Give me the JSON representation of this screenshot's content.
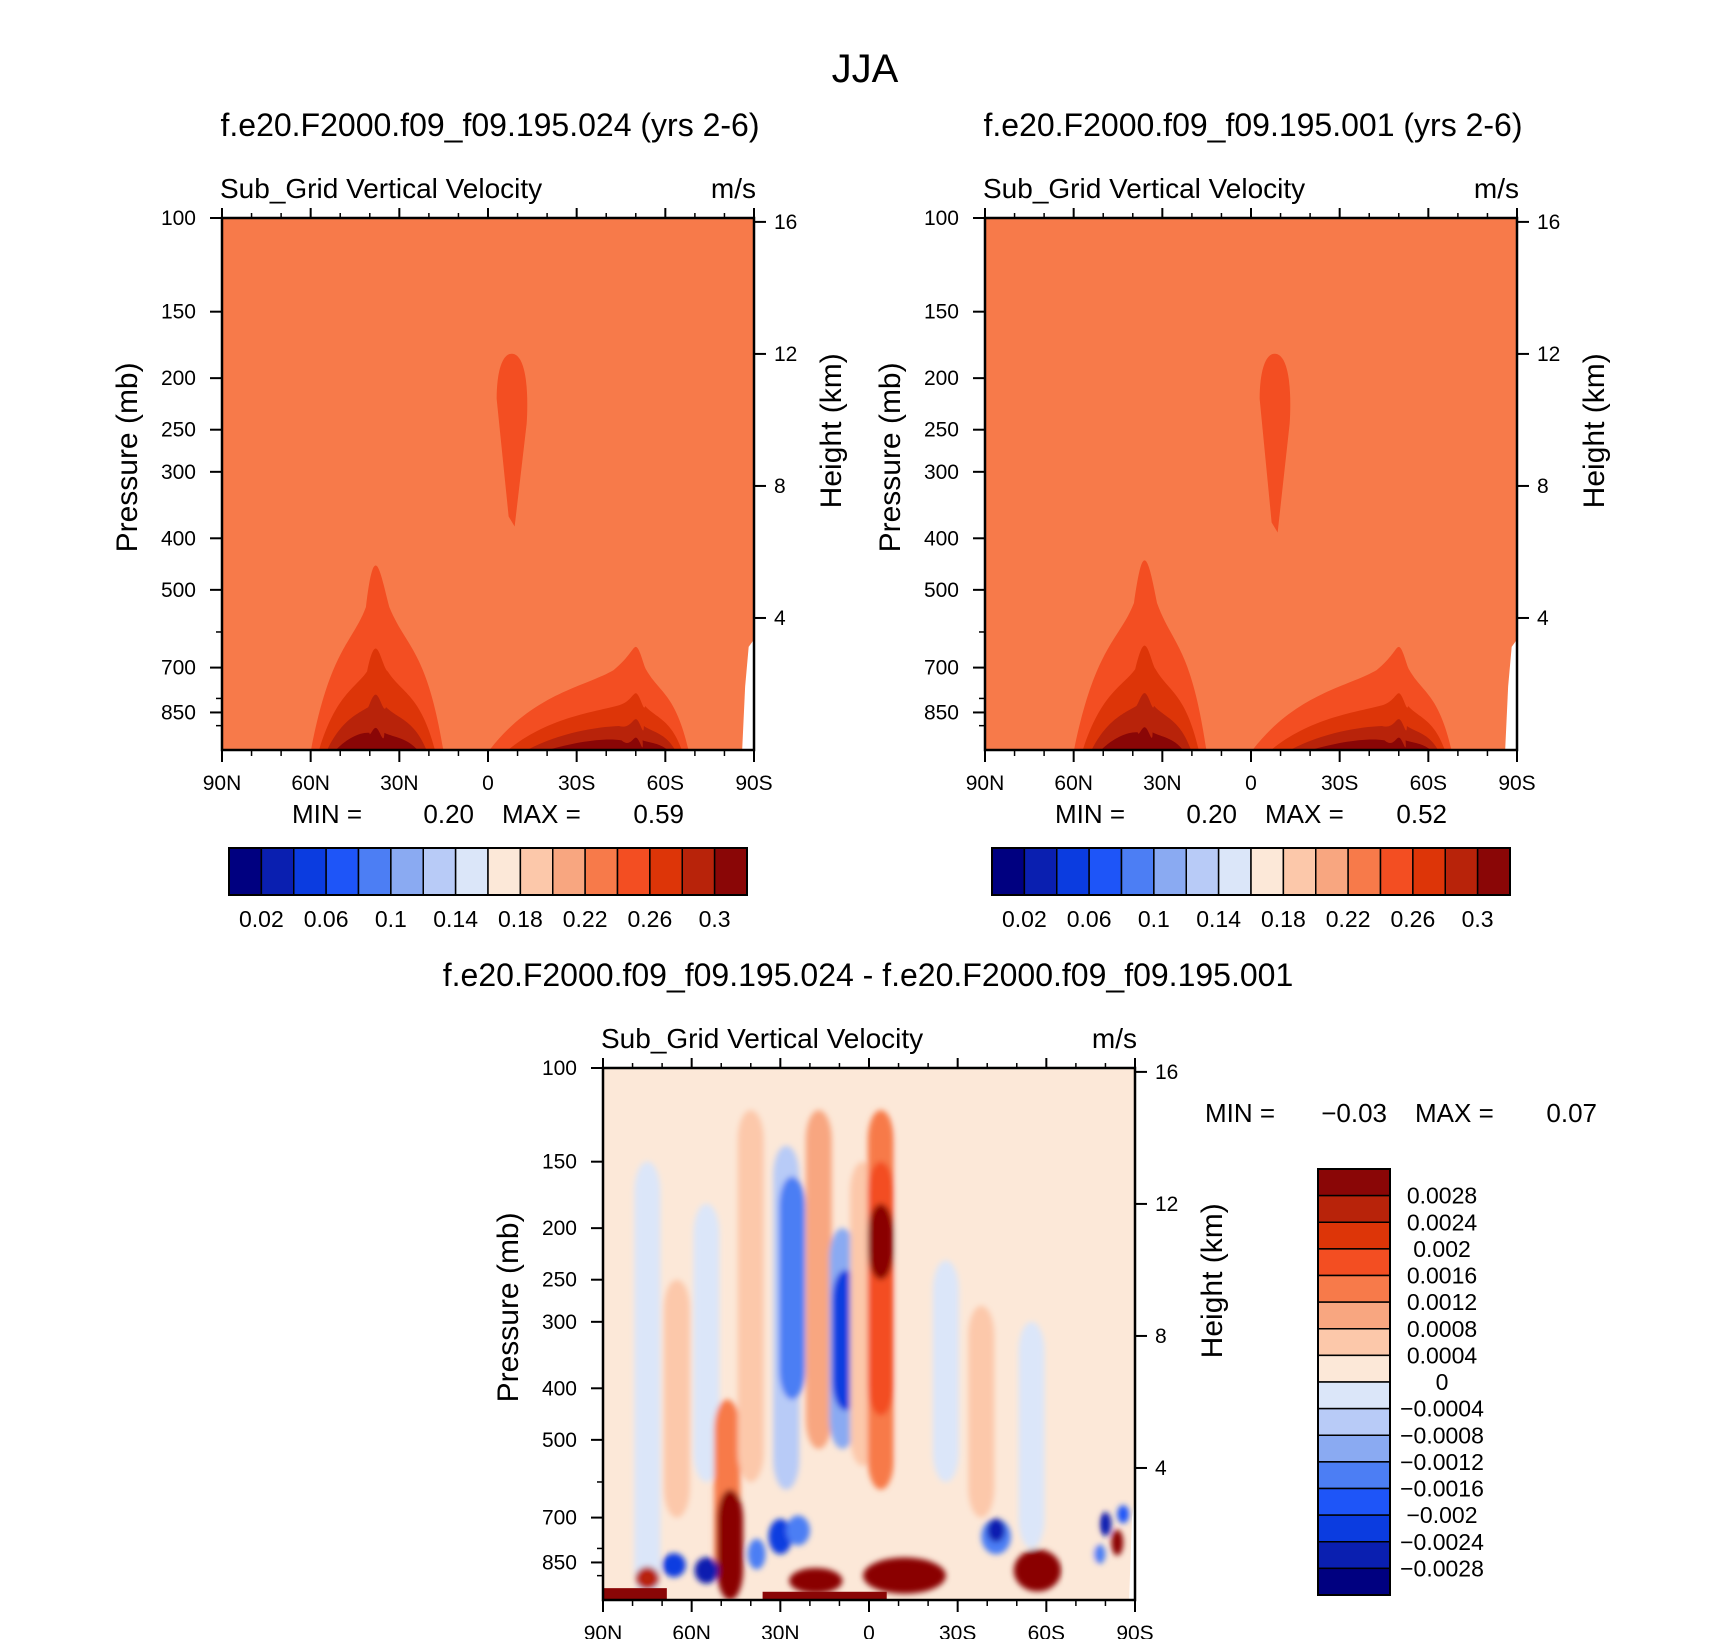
{
  "figure": {
    "title": "JJA"
  },
  "chart_data": [
    {
      "id": "panel1",
      "type": "heatmap",
      "title": "f.e20.F2000.f09_f09.195.024 (yrs 2-6)",
      "variable": "Sub_Grid Vertical Velocity",
      "units": "m/s",
      "ylabel": "Pressure (mb)",
      "ylabel_right": "Height (km)",
      "x_ticks": [
        "90N",
        "60N",
        "30N",
        "0",
        "30S",
        "60S",
        "90S"
      ],
      "y_ticks": [
        "100",
        "150",
        "200",
        "250",
        "300",
        "400",
        "500",
        "700",
        "850"
      ],
      "y_tick_values": [
        100,
        150,
        200,
        250,
        300,
        400,
        500,
        700,
        850
      ],
      "right_ticks": [
        "16",
        "12",
        "8",
        "4"
      ],
      "right_tick_values": [
        16,
        12,
        8,
        4
      ],
      "ylim": [
        100,
        1000
      ],
      "min_label": "MIN =",
      "min_value": "0.20",
      "max_label": "MAX =",
      "max_value": "0.59",
      "background_level": 0.22,
      "features": [
        {
          "kind": "upper-plume",
          "center_lat": -8,
          "p_top": 180,
          "p_bottom": 380,
          "level": 0.24
        },
        {
          "kind": "boundary-layer",
          "lat_from": 60,
          "lat_to": 15,
          "peak_lat": 38,
          "top_p": 450,
          "max_level": 0.3
        },
        {
          "kind": "boundary-layer",
          "lat_from": 0,
          "lat_to": -68,
          "peak_lat": -50,
          "top_p": 640,
          "max_level": 0.3
        }
      ]
    },
    {
      "id": "panel2",
      "type": "heatmap",
      "title": "f.e20.F2000.f09_f09.195.001 (yrs 2-6)",
      "variable": "Sub_Grid Vertical Velocity",
      "units": "m/s",
      "ylabel": "Pressure (mb)",
      "ylabel_right": "Height (km)",
      "x_ticks": [
        "90N",
        "60N",
        "30N",
        "0",
        "30S",
        "60S",
        "90S"
      ],
      "y_ticks": [
        "100",
        "150",
        "200",
        "250",
        "300",
        "400",
        "500",
        "700",
        "850"
      ],
      "y_tick_values": [
        100,
        150,
        200,
        250,
        300,
        400,
        500,
        700,
        850
      ],
      "right_ticks": [
        "16",
        "12",
        "8",
        "4"
      ],
      "right_tick_values": [
        16,
        12,
        8,
        4
      ],
      "ylim": [
        100,
        1000
      ],
      "min_label": "MIN =",
      "min_value": "0.20",
      "max_label": "MAX =",
      "max_value": "0.52",
      "background_level": 0.22,
      "features": [
        {
          "kind": "upper-plume",
          "center_lat": -8,
          "p_top": 180,
          "p_bottom": 390,
          "level": 0.24
        },
        {
          "kind": "boundary-layer",
          "lat_from": 60,
          "lat_to": 15,
          "peak_lat": 36,
          "top_p": 440,
          "max_level": 0.3
        },
        {
          "kind": "boundary-layer",
          "lat_from": 0,
          "lat_to": -68,
          "peak_lat": -50,
          "top_p": 640,
          "max_level": 0.3
        }
      ]
    },
    {
      "id": "diff",
      "type": "heatmap",
      "title": "f.e20.F2000.f09_f09.195.024 - f.e20.F2000.f09_f09.195.001",
      "variable": "Sub_Grid Vertical Velocity",
      "units": "m/s",
      "ylabel": "Pressure (mb)",
      "ylabel_right": "Height (km)",
      "x_ticks": [
        "90N",
        "60N",
        "30N",
        "0",
        "30S",
        "60S",
        "90S"
      ],
      "y_ticks": [
        "100",
        "150",
        "200",
        "250",
        "300",
        "400",
        "500",
        "700",
        "850"
      ],
      "y_tick_values": [
        100,
        150,
        200,
        250,
        300,
        400,
        500,
        700,
        850
      ],
      "right_ticks": [
        "16",
        "12",
        "8",
        "4"
      ],
      "right_tick_values": [
        16,
        12,
        8,
        4
      ],
      "ylim": [
        100,
        1000
      ],
      "min_label": "MIN =",
      "min_value": "-0.03",
      "max_label": "MAX =",
      "max_value": "0.07",
      "columns": [
        {
          "lat": 85,
          "p_top": 100,
          "p_bottom": 1000,
          "level": 0.0002
        },
        {
          "lat": 75,
          "p_top": 150,
          "p_bottom": 1000,
          "level": -0.0002
        },
        {
          "lat": 65,
          "p_top": 250,
          "p_bottom": 700,
          "level": 0.0004
        },
        {
          "lat": 55,
          "p_top": 180,
          "p_bottom": 600,
          "level": -0.0004
        },
        {
          "lat": 48,
          "p_top": 420,
          "p_bottom": 950,
          "level": 0.0012
        },
        {
          "lat": 47,
          "p_top": 620,
          "p_bottom": 1000,
          "level": 0.0028
        },
        {
          "lat": 40,
          "p_top": 120,
          "p_bottom": 600,
          "level": 0.0004
        },
        {
          "lat": 28,
          "p_top": 140,
          "p_bottom": 620,
          "level": -0.0008
        },
        {
          "lat": 26,
          "p_top": 160,
          "p_bottom": 420,
          "level": -0.0016
        },
        {
          "lat": 17,
          "p_top": 120,
          "p_bottom": 520,
          "level": 0.0008
        },
        {
          "lat": 9,
          "p_top": 200,
          "p_bottom": 520,
          "level": -0.0012
        },
        {
          "lat": 8,
          "p_top": 240,
          "p_bottom": 440,
          "level": -0.0024
        },
        {
          "lat": 2,
          "p_top": 150,
          "p_bottom": 560,
          "level": 0.0004
        },
        {
          "lat": -4,
          "p_top": 120,
          "p_bottom": 620,
          "level": 0.0012
        },
        {
          "lat": -4,
          "p_top": 150,
          "p_bottom": 450,
          "level": 0.0016
        },
        {
          "lat": -4,
          "p_top": 180,
          "p_bottom": 250,
          "level": 0.0028
        },
        {
          "lat": -14,
          "p_top": 100,
          "p_bottom": 600,
          "level": 0.0002
        },
        {
          "lat": -26,
          "p_top": 230,
          "p_bottom": 600,
          "level": -0.0004
        },
        {
          "lat": -38,
          "p_top": 280,
          "p_bottom": 700,
          "level": 0.0004
        },
        {
          "lat": -55,
          "p_top": 300,
          "p_bottom": 800,
          "level": -0.0002
        },
        {
          "lat": -72,
          "p_top": 100,
          "p_bottom": 1000,
          "level": 0.0002
        }
      ],
      "blobs": [
        {
          "lat": -12,
          "p": 900,
          "dlat": 14,
          "dp": 110,
          "level": 0.0028
        },
        {
          "lat": 18,
          "p": 920,
          "dlat": 9,
          "dp": 70,
          "level": 0.0028
        },
        {
          "lat": -57,
          "p": 880,
          "dlat": 8,
          "dp": 130,
          "level": 0.0028
        },
        {
          "lat": 75,
          "p": 910,
          "dlat": 4,
          "dp": 60,
          "level": 0.0024
        },
        {
          "lat": 55,
          "p": 880,
          "dlat": 4,
          "dp": 70,
          "level": -0.0028
        },
        {
          "lat": 66,
          "p": 860,
          "dlat": 4,
          "dp": 60,
          "level": -0.0024
        },
        {
          "lat": 38,
          "p": 820,
          "dlat": 3,
          "dp": 80,
          "level": -0.0016
        },
        {
          "lat": 30,
          "p": 760,
          "dlat": 4,
          "dp": 90,
          "level": -0.0024
        },
        {
          "lat": 24,
          "p": 740,
          "dlat": 4,
          "dp": 70,
          "level": -0.0016
        },
        {
          "lat": -43,
          "p": 760,
          "dlat": 5,
          "dp": 90,
          "level": -0.0016
        },
        {
          "lat": -43,
          "p": 740,
          "dlat": 3,
          "dp": 50,
          "level": -0.0028
        },
        {
          "lat": -80,
          "p": 720,
          "dlat": 2,
          "dp": 50,
          "level": -0.0028
        },
        {
          "lat": -84,
          "p": 780,
          "dlat": 2,
          "dp": 60,
          "level": 0.0028
        },
        {
          "lat": -78,
          "p": 820,
          "dlat": 2,
          "dp": 40,
          "level": -0.0016
        },
        {
          "lat": -86,
          "p": 690,
          "dlat": 2,
          "dp": 30,
          "level": -0.002
        }
      ],
      "surface_band": {
        "p_top": 950,
        "level": 0.0028
      }
    }
  ],
  "colorbars": {
    "panel": {
      "colors": [
        "#000080",
        "#0a1fb0",
        "#0b3ce0",
        "#1e55f8",
        "#4c7ef4",
        "#8aaaf2",
        "#b8cbf7",
        "#dbe6f9",
        "#fce8d8",
        "#fcc8aa",
        "#f8a680",
        "#f77a4a",
        "#f34e22",
        "#dd3508",
        "#b8230a",
        "#8a0606"
      ],
      "labels": [
        "0.02",
        "0.06",
        "0.1",
        "0.14",
        "0.18",
        "0.22",
        "0.26",
        "0.3"
      ]
    },
    "diff": {
      "colors": [
        "#8a0606",
        "#b8230a",
        "#dd3508",
        "#f34e22",
        "#f77a4a",
        "#f8a680",
        "#fcc8aa",
        "#fce8d8",
        "#dbe6f9",
        "#b8cbf7",
        "#8aaaf2",
        "#4c7ef4",
        "#1e55f8",
        "#0b3ce0",
        "#0a1fb0",
        "#000080"
      ],
      "labels": [
        "0.0028",
        "0.0024",
        "0.002",
        "0.0016",
        "0.0012",
        "0.0008",
        "0.0004",
        "0",
        "-0.0004",
        "-0.0008",
        "-0.0012",
        "-0.0016",
        "-0.002",
        "-0.0024",
        "-0.0028"
      ]
    }
  }
}
